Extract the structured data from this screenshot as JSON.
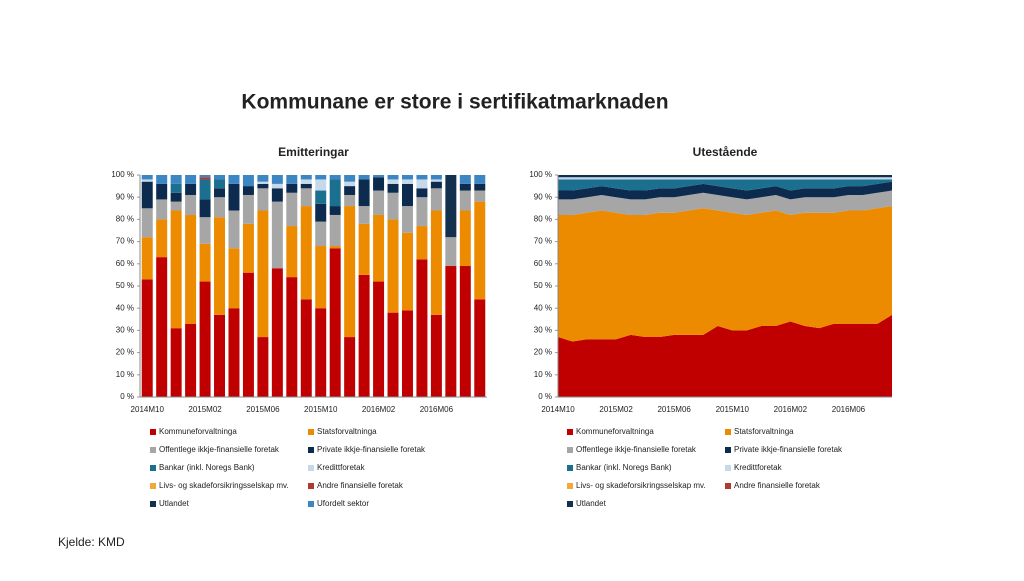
{
  "title": "Kommunane er store i sertifikatmarknaden",
  "source": "Kjelde: KMD",
  "chart_data": [
    {
      "type": "bar",
      "stacked": true,
      "title": "Emitteringar",
      "categories": [
        "2014M10",
        null,
        null,
        null,
        "2015M02",
        null,
        null,
        null,
        "2015M06",
        null,
        null,
        null,
        "2015M10",
        null,
        null,
        null,
        "2016M02",
        null,
        null,
        null,
        "2016M06",
        null,
        null,
        null
      ],
      "ylim": [
        0,
        100
      ],
      "yticks": [
        {
          "value": 0,
          "label": "0 %"
        },
        {
          "value": 10,
          "label": "10 %"
        },
        {
          "value": 20,
          "label": "20 %"
        },
        {
          "value": 30,
          "label": "30 %"
        },
        {
          "value": 40,
          "label": "40 %"
        },
        {
          "value": 50,
          "label": "50 %"
        },
        {
          "value": 60,
          "label": "60 %"
        },
        {
          "value": 70,
          "label": "70 %"
        },
        {
          "value": 80,
          "label": "80 %"
        },
        {
          "value": 90,
          "label": "90 %"
        },
        {
          "value": 100,
          "label": "100 %"
        }
      ],
      "series": [
        {
          "name": "Kommuneforvaltninga",
          "color": "#c00000",
          "values": [
            53,
            63,
            31,
            33,
            52,
            37,
            40,
            56,
            27,
            58,
            54,
            44,
            40,
            67,
            27,
            55,
            52,
            38,
            39,
            62,
            37,
            59,
            59,
            44
          ]
        },
        {
          "name": "Statsforvaltninga",
          "color": "#ed8b00",
          "values": [
            19,
            17,
            53,
            49,
            17,
            44,
            27,
            22,
            57,
            0,
            23,
            42,
            28,
            1,
            59,
            23,
            30,
            42,
            35,
            15,
            47,
            0,
            25,
            44
          ]
        },
        {
          "name": "Offentlege ikkje-finansielle foretak",
          "color": "#a6a6a6",
          "values": [
            13,
            9,
            4,
            9,
            12,
            9,
            17,
            13,
            10,
            30,
            15,
            8,
            11,
            14,
            5,
            8,
            11,
            12,
            12,
            13,
            10,
            13,
            9,
            5
          ]
        },
        {
          "name": "Private ikkje-finansielle foretak",
          "color": "#0d2b4e",
          "values": [
            12,
            7,
            4,
            5,
            8,
            4,
            12,
            4,
            2,
            6,
            4,
            2,
            8,
            4,
            4,
            12,
            6,
            4,
            10,
            4,
            3,
            0,
            3,
            3
          ]
        },
        {
          "name": "Bankar (inkl. Noregs Bank)",
          "color": "#1b6f8f",
          "values": [
            0,
            0,
            4,
            0,
            9,
            4,
            0,
            0,
            0,
            0,
            0,
            0,
            6,
            12,
            0,
            0,
            0,
            0,
            0,
            0,
            0,
            0,
            0,
            0
          ]
        },
        {
          "name": "Kredittforetak",
          "color": "#c5d9ea",
          "values": [
            1,
            0,
            0,
            0,
            0,
            0,
            0,
            0,
            1,
            2,
            0,
            2,
            5,
            0,
            2,
            0,
            0,
            2,
            2,
            4,
            1,
            0,
            0,
            0
          ]
        },
        {
          "name": "Livs- og skadeforsikringsselskap mv.",
          "color": "#f2a93b",
          "values": [
            0,
            0,
            0,
            0,
            0,
            0,
            0,
            0,
            0,
            0,
            0,
            0,
            0,
            0,
            0,
            0,
            0,
            0,
            0,
            0,
            0,
            0,
            0,
            0
          ]
        },
        {
          "name": "Andre finansielle foretak",
          "color": "#b03a2e",
          "values": [
            0,
            0,
            0,
            0,
            1,
            0,
            0,
            0,
            0,
            0,
            0,
            0,
            0,
            0,
            0,
            0,
            0,
            0,
            0,
            0,
            0,
            0,
            0,
            0
          ]
        },
        {
          "name": "Utlandet",
          "color": "#14304f",
          "values": [
            0,
            0,
            0,
            0,
            0,
            0,
            0,
            0,
            0,
            0,
            0,
            0,
            0,
            0,
            0,
            0,
            0,
            0,
            0,
            0,
            0,
            28,
            0,
            0
          ]
        },
        {
          "name": "Ufordelt sektor",
          "color": "#3c86c4",
          "values": [
            2,
            4,
            4,
            4,
            1,
            2,
            4,
            5,
            3,
            4,
            4,
            2,
            2,
            2,
            3,
            2,
            1,
            2,
            2,
            2,
            2,
            0,
            4,
            4
          ]
        }
      ]
    },
    {
      "type": "area",
      "stacked": true,
      "title": "Utestående",
      "categories": [
        "2014M10",
        null,
        null,
        null,
        "2015M02",
        null,
        null,
        null,
        "2015M06",
        null,
        null,
        null,
        "2015M10",
        null,
        null,
        null,
        "2016M02",
        null,
        null,
        null,
        "2016M06",
        null,
        null,
        null
      ],
      "ylim": [
        0,
        100
      ],
      "yticks": [
        {
          "value": 0,
          "label": "0 %"
        },
        {
          "value": 10,
          "label": "10 %"
        },
        {
          "value": 20,
          "label": "20 %"
        },
        {
          "value": 30,
          "label": "30 %"
        },
        {
          "value": 40,
          "label": "40 %"
        },
        {
          "value": 50,
          "label": "50 %"
        },
        {
          "value": 60,
          "label": "60 %"
        },
        {
          "value": 70,
          "label": "70 %"
        },
        {
          "value": 80,
          "label": "80 %"
        },
        {
          "value": 90,
          "label": "90 %"
        },
        {
          "value": 100,
          "label": "100 %"
        }
      ],
      "series": [
        {
          "name": "Kommuneforvaltninga",
          "color": "#c00000",
          "values": [
            27,
            25,
            26,
            26,
            26,
            28,
            27,
            27,
            28,
            28,
            28,
            32,
            30,
            30,
            32,
            32,
            34,
            32,
            31,
            33,
            33,
            33,
            33,
            37
          ]
        },
        {
          "name": "Statsforvaltninga",
          "color": "#ed8b00",
          "values": [
            55,
            57,
            57,
            58,
            57,
            54,
            55,
            56,
            55,
            56,
            57,
            52,
            53,
            52,
            51,
            52,
            48,
            51,
            52,
            50,
            51,
            51,
            52,
            49
          ]
        },
        {
          "name": "Offentlege ikkje-finansielle foretak",
          "color": "#a6a6a6",
          "values": [
            7,
            7,
            7,
            7,
            7,
            7,
            7,
            7,
            7,
            7,
            7,
            7,
            7,
            7,
            7,
            7,
            7,
            7,
            7,
            7,
            7,
            7,
            7,
            7
          ]
        },
        {
          "name": "Private ikkje-finansielle foretak",
          "color": "#0d2b4e",
          "values": [
            4,
            4,
            4,
            4,
            4,
            4,
            4,
            4,
            4,
            4,
            4,
            4,
            4,
            4,
            4,
            4,
            4,
            4,
            4,
            4,
            4,
            4,
            4,
            4
          ]
        },
        {
          "name": "Bankar (inkl. Noregs Bank)",
          "color": "#1b6f8f",
          "values": [
            5,
            5,
            4,
            3,
            4,
            5,
            5,
            4,
            4,
            3,
            2,
            3,
            4,
            5,
            4,
            3,
            5,
            4,
            4,
            4,
            3,
            3,
            2,
            1
          ]
        },
        {
          "name": "Kredittforetak",
          "color": "#c5d9ea",
          "values": [
            1,
            1,
            1,
            1,
            1,
            1,
            1,
            1,
            1,
            1,
            1,
            1,
            1,
            1,
            1,
            1,
            1,
            1,
            1,
            1,
            1,
            1,
            1,
            1
          ]
        },
        {
          "name": "Livs- og skadeforsikringsselskap mv.",
          "color": "#f2a93b",
          "values": [
            0,
            0,
            0,
            0,
            0,
            0,
            0,
            0,
            0,
            0,
            0,
            0,
            0,
            0,
            0,
            0,
            0,
            0,
            0,
            0,
            0,
            0,
            0,
            0
          ]
        },
        {
          "name": "Andre finansielle foretak",
          "color": "#b03a2e",
          "values": [
            0,
            0,
            0,
            0,
            0,
            0,
            0,
            0,
            0,
            0,
            0,
            0,
            0,
            0,
            0,
            0,
            0,
            0,
            0,
            0,
            0,
            0,
            0,
            0
          ]
        },
        {
          "name": "Utlandet",
          "color": "#14304f",
          "values": [
            1,
            1,
            1,
            1,
            1,
            1,
            1,
            1,
            1,
            1,
            1,
            1,
            1,
            1,
            1,
            1,
            1,
            1,
            1,
            1,
            1,
            1,
            1,
            1
          ]
        }
      ]
    }
  ]
}
